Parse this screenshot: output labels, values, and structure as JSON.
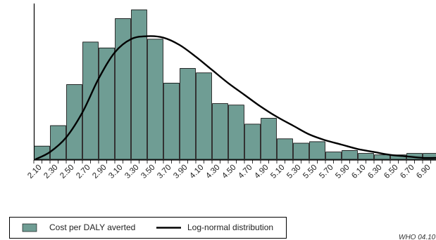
{
  "chart_data": {
    "type": "bar",
    "categories": [
      "2.10",
      "2.30",
      "2.50",
      "2.70",
      "2.90",
      "3.10",
      "3.30",
      "3.50",
      "3.70",
      "3.90",
      "4.10",
      "4.30",
      "4.50",
      "4.70",
      "4.90",
      "5.10",
      "5.30",
      "5.50",
      "5.70",
      "5.90",
      "6.10",
      "6.30",
      "6.50",
      "6.70",
      "6.90"
    ],
    "series": [
      {
        "name": "Cost per DALY averted",
        "type": "bar",
        "values": [
          9,
          23,
          51,
          80,
          76,
          96,
          102,
          82,
          52,
          62,
          59,
          38,
          37,
          24,
          28,
          14,
          11,
          12,
          5,
          6,
          4,
          3,
          3,
          4,
          4
        ],
        "color": "#6f9d94"
      },
      {
        "name": "Log-normal distribution",
        "type": "line",
        "x": [
          2.02,
          2.2,
          2.4,
          2.6,
          2.8,
          3.0,
          3.2,
          3.4,
          3.6,
          3.8,
          4.0,
          4.2,
          4.4,
          4.6,
          4.8,
          5.0,
          5.2,
          5.4,
          5.6,
          5.8,
          6.0,
          6.2,
          6.4,
          6.6,
          6.8,
          7.0
        ],
        "y": [
          0,
          5,
          15,
          32,
          55,
          73,
          82,
          84,
          83,
          78,
          70,
          61,
          52,
          44,
          36,
          29,
          23,
          17,
          13,
          10,
          7,
          5,
          3,
          2,
          1,
          1
        ],
        "color": "#000000"
      }
    ],
    "xlabel": "",
    "ylabel": "",
    "ylim": [
      0,
      102
    ],
    "grid": false,
    "legend_position": "bottom-left"
  },
  "footer": {
    "source": "WHO 04.10"
  }
}
